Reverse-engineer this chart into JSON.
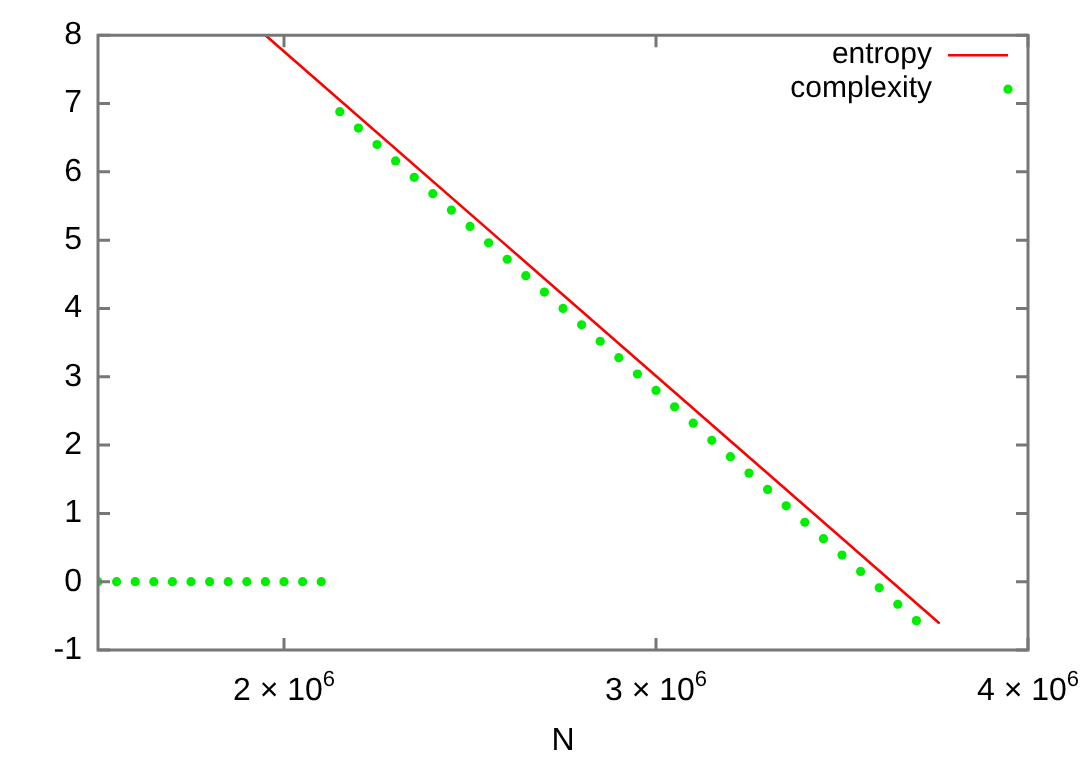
{
  "chart_data": {
    "type": "line",
    "xlabel": "N",
    "xlim": [
      1500000,
      4000000
    ],
    "xticks": [
      {
        "value": 2000000,
        "label": "2 × 10$^{6}$"
      },
      {
        "value": 3000000,
        "label": "3 × 10$^{6}$"
      },
      {
        "value": 4000000,
        "label": "4 × 10$^{6}$"
      }
    ],
    "ylim": [
      -1,
      8
    ],
    "yticks": [
      -1,
      0,
      1,
      2,
      3,
      4,
      5,
      6,
      7,
      8
    ],
    "grid": false,
    "legend": "top right",
    "series": [
      {
        "name": "entropy",
        "color": "#ff0000",
        "marker": "none",
        "line_style": "solid",
        "x": [
          1950000,
          3760000
        ],
        "values": [
          8,
          -0.6
        ]
      },
      {
        "name": "complexity",
        "type": "scatter",
        "color": "#00ee00",
        "marker": "circle",
        "x": [
          1500000,
          1550000,
          1600000,
          1650000,
          1700000,
          1750000,
          1800000,
          1850000,
          1900000,
          1950000,
          2000000,
          2050000,
          2100000,
          2150000,
          2200000,
          2250000,
          2300000,
          2350000,
          2400000,
          2450000,
          2500000,
          2550000,
          2600000,
          2650000,
          2700000,
          2750000,
          2800000,
          2850000,
          2900000,
          2950000,
          3000000,
          3050000,
          3100000,
          3150000,
          3200000,
          3250000,
          3300000,
          3350000,
          3400000,
          3450000,
          3500000,
          3550000,
          3600000,
          3650000,
          3700000
        ],
        "values": [
          0,
          0,
          0,
          0,
          0,
          0,
          0,
          0,
          0,
          0,
          0,
          0,
          0,
          6.88,
          6.64,
          6.4,
          6.16,
          5.92,
          5.68,
          5.44,
          5.2,
          4.96,
          4.72,
          4.48,
          4.24,
          4.0,
          3.76,
          3.52,
          3.28,
          3.04,
          2.8,
          2.56,
          2.32,
          2.07,
          1.83,
          1.59,
          1.35,
          1.11,
          0.87,
          0.63,
          0.39,
          0.15,
          -0.09,
          -0.33,
          -0.57
        ]
      }
    ]
  }
}
